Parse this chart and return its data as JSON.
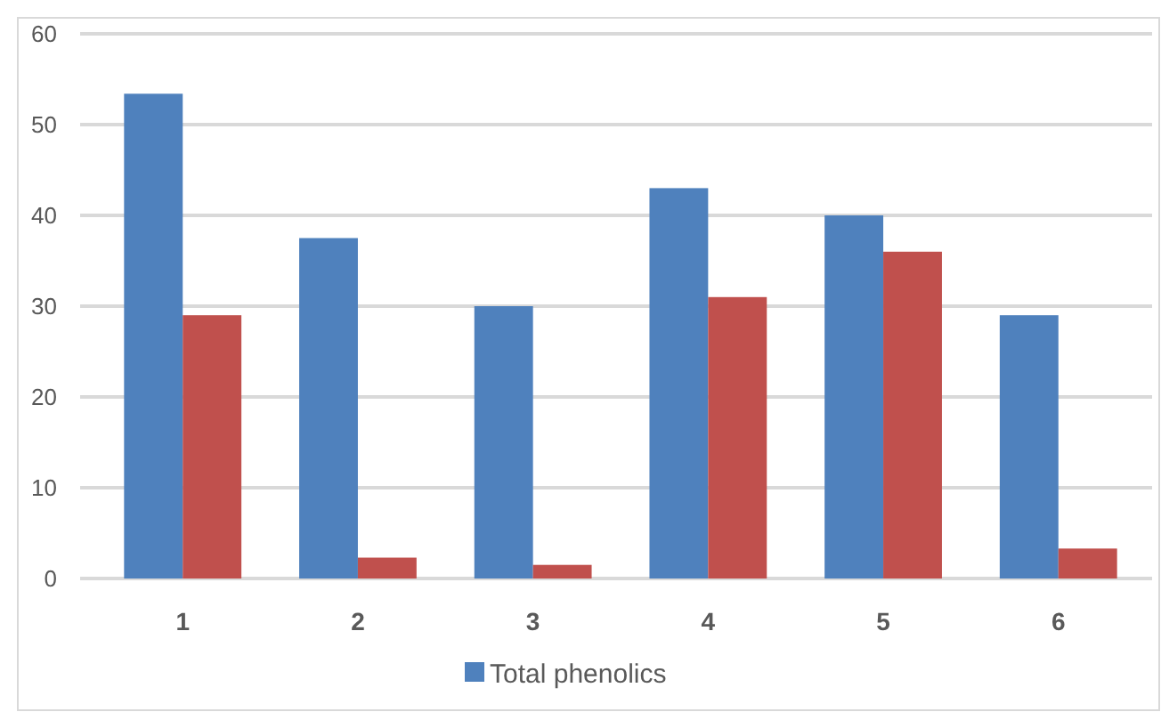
{
  "chart_data": {
    "type": "bar",
    "categories": [
      "1",
      "2",
      "3",
      "4",
      "5",
      "6"
    ],
    "series": [
      {
        "name": "Total phenolics",
        "color": "#4f81bd",
        "values": [
          53.4,
          37.5,
          30,
          43,
          40,
          29
        ]
      },
      {
        "color": "#c0504d",
        "values": [
          29,
          2.3,
          1.5,
          31,
          36,
          3.3
        ]
      }
    ],
    "ylim": [
      0,
      60
    ],
    "yticks": [
      0,
      10,
      20,
      30,
      40,
      50,
      60
    ],
    "grid": "y",
    "legend": "bottom"
  }
}
